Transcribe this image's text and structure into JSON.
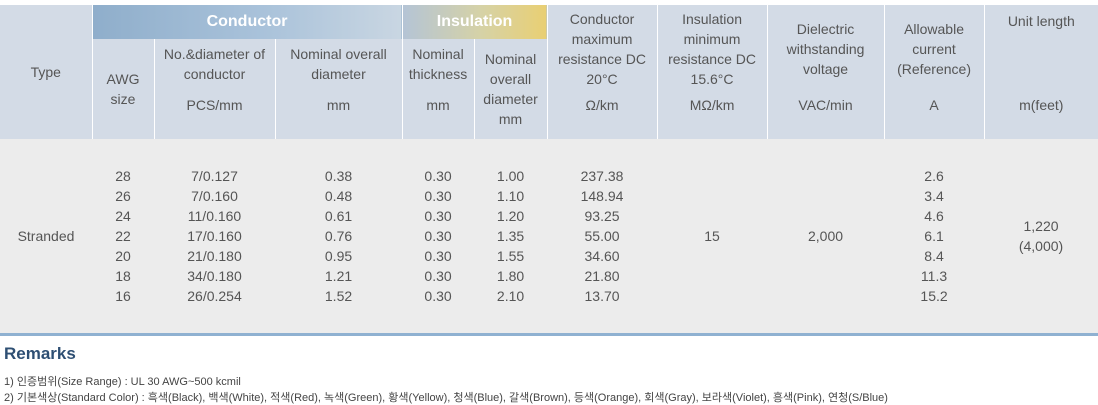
{
  "table": {
    "group_conductor": "Conductor",
    "group_insulation": "Insulation",
    "headers": {
      "type": "Type",
      "awg_size": "AWG size",
      "no_diameter": "No.&diameter of conductor",
      "no_diameter_unit": "PCS/mm",
      "nominal_overall_diameter": "Nominal overall diameter",
      "nominal_overall_diameter_unit": "mm",
      "nominal_thickness": "Nominal thickness",
      "nominal_thickness_unit": "mm",
      "ins_overall_diameter": "Nominal overall diameter",
      "ins_overall_diameter_unit": "mm",
      "conductor_resistance": "Conductor maximum resistance DC 20°C",
      "conductor_resistance_unit": "Ω/km",
      "insulation_resistance": "Insulation minimum resistance DC 15.6°C",
      "insulation_resistance_unit": "MΩ/km",
      "dielectric": "Dielectric withstanding voltage",
      "dielectric_unit": "VAC/min",
      "allowable_current": "Allowable current (Reference)",
      "allowable_current_unit": "A",
      "unit_length": "Unit length",
      "unit_length_unit": "m(feet)"
    },
    "type_value": "Stranded",
    "awg": [
      "28",
      "26",
      "24",
      "22",
      "20",
      "18",
      "16"
    ],
    "no_diameter": [
      "7/0.127",
      "7/0.160",
      "11/0.160",
      "17/0.160",
      "21/0.180",
      "34/0.180",
      "26/0.254"
    ],
    "conductor_od": [
      "0.38",
      "0.48",
      "0.61",
      "0.76",
      "0.95",
      "1.21",
      "1.52"
    ],
    "thickness": [
      "0.30",
      "0.30",
      "0.30",
      "0.30",
      "0.30",
      "0.30",
      "0.30"
    ],
    "insulation_od": [
      "1.00",
      "1.10",
      "1.20",
      "1.35",
      "1.55",
      "1.80",
      "2.10"
    ],
    "resistance": [
      "237.38",
      "148.94",
      "93.25",
      "55.00",
      "34.60",
      "21.80",
      "13.70"
    ],
    "insulation_resistance_value": "15",
    "dielectric_value": "2,000",
    "current": [
      "2.6",
      "3.4",
      "4.6",
      "6.1",
      "8.4",
      "11.3",
      "15.2"
    ],
    "unit_length_value": "1,220",
    "unit_length_feet": "(4,000)"
  },
  "remarks": {
    "title": "Remarks",
    "line1": "1) 인증범위(Size Range) : UL 30 AWG~500 kcmil",
    "line2": "2) 기본색상(Standard Color) : 흑색(Black), 백색(White), 적색(Red), 녹색(Green), 황색(Yellow), 청색(Blue), 갈색(Brown), 등색(Orange), 회색(Gray), 보라색(Violet), 흥색(Pink), 연청(S/Blue)"
  }
}
